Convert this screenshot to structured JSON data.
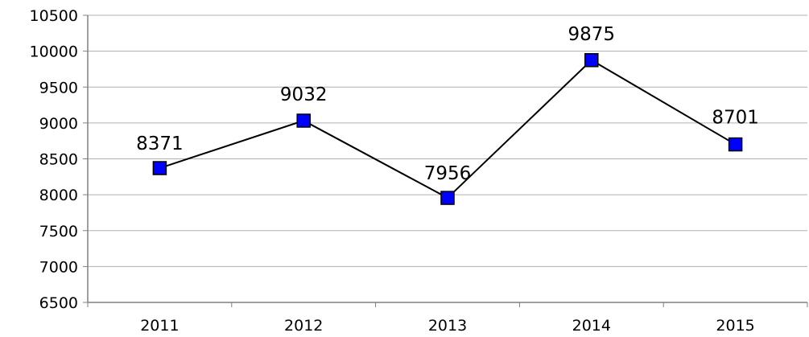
{
  "chart_data": {
    "type": "line",
    "title": "",
    "xlabel": "",
    "ylabel": "",
    "categories": [
      "2011",
      "2012",
      "2013",
      "2014",
      "2015"
    ],
    "series": [
      {
        "values": [
          8371,
          9032,
          7956,
          9875,
          8701
        ],
        "data_labels": [
          "8371",
          "9032",
          "7956",
          "9875",
          "8701"
        ],
        "line_color": "#000000",
        "marker": "square",
        "marker_color": "#0000ff"
      }
    ],
    "ylim": [
      6500,
      10500
    ],
    "y_ticks": [
      6500,
      7000,
      7500,
      8000,
      8500,
      9000,
      9500,
      10000,
      10500
    ],
    "y_tick_labels": [
      "6500",
      "7000",
      "7500",
      "8000",
      "8500",
      "9000",
      "9500",
      "10000",
      "10500"
    ],
    "grid": true,
    "grid_color": "#b0b0b0",
    "legend": "none"
  }
}
